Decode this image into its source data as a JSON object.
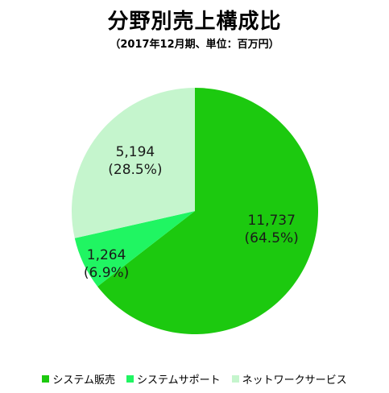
{
  "title": "分野別売上構成比",
  "subtitle": "（2017年12月期、単位：百万円）",
  "chart_data": {
    "type": "pie",
    "title": "分野別売上構成比",
    "subtitle": "（2017年12月期、単位：百万円）",
    "unit": "百万円",
    "start_angle_deg": 0,
    "direction": "clockwise",
    "legend_position": "bottom",
    "slices": [
      {
        "name": "システム販売",
        "value": 11737,
        "value_label": "11,737",
        "percent_label": "(64.5%)",
        "color": "#1cc90f"
      },
      {
        "name": "システムサポート",
        "value": 1264,
        "value_label": "1,264",
        "percent_label": "(6.9%)",
        "color": "#20f562"
      },
      {
        "name": "ネットワークサービス",
        "value": 5194,
        "value_label": "5,194",
        "percent_label": "(28.5%)",
        "color": "#c5f5cd"
      }
    ]
  }
}
